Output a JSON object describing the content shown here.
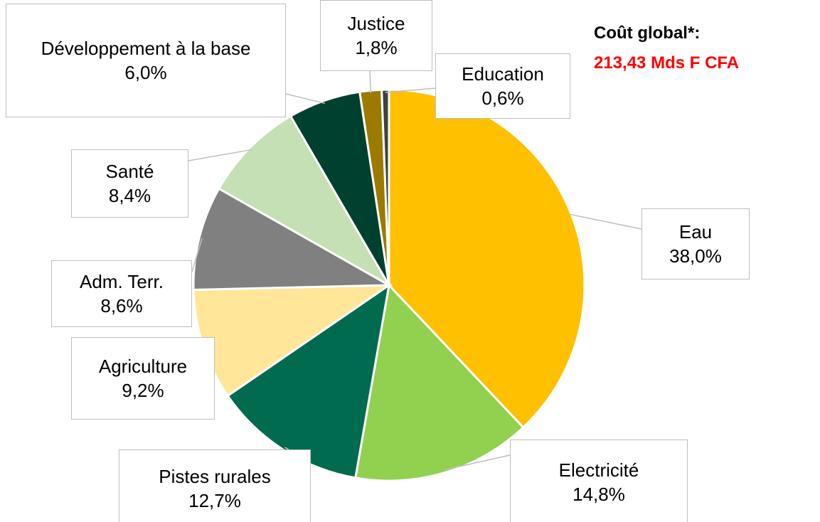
{
  "chart_data": {
    "type": "pie",
    "categories": [
      "Eau",
      "Electricité",
      "Pistes rurales",
      "Agriculture",
      "Adm. Terr.",
      "Santé",
      "Développement à la base",
      "Justice",
      "Education"
    ],
    "values": [
      38.0,
      14.8,
      12.7,
      9.2,
      8.6,
      8.4,
      6.0,
      1.8,
      0.6
    ],
    "value_labels": [
      "38,0%",
      "14,8%",
      "12,7%",
      "9,2%",
      "8,6%",
      "8,4%",
      "6,0%",
      "1,8%",
      "0,6%"
    ],
    "colors": [
      "#FFC000",
      "#92D050",
      "#006B4F",
      "#FFE699",
      "#808080",
      "#C5E0B4",
      "#00402F",
      "#9C7A00",
      "#404040"
    ],
    "annotations": [
      "Coût global*:",
      "213,43 Mds F CFA"
    ]
  }
}
